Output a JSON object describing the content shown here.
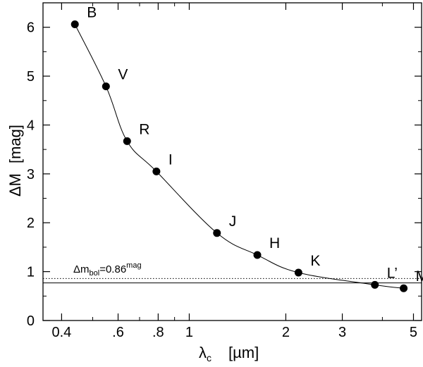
{
  "chart_data": {
    "type": "line",
    "x_scale": "log",
    "xlabel": {
      "symbol": "λ",
      "sub": "c",
      "unit": "[µm]"
    },
    "ylabel": {
      "text": "ΔM",
      "unit": "[mag]"
    },
    "xlim": [
      0.35,
      5.3
    ],
    "ylim": [
      0,
      6.5
    ],
    "xticks": [
      {
        "value": 0.4,
        "label": "0.4"
      },
      {
        "value": 0.6,
        "label": ".6"
      },
      {
        "value": 0.8,
        "label": ".8"
      },
      {
        "value": 1,
        "label": "1"
      },
      {
        "value": 2,
        "label": "2"
      },
      {
        "value": 3,
        "label": "3"
      },
      {
        "value": 5,
        "label": "5"
      }
    ],
    "xminor": [
      0.5,
      0.7,
      0.9,
      4
    ],
    "yticks": [
      {
        "value": 0,
        "label": "0"
      },
      {
        "value": 1,
        "label": "1"
      },
      {
        "value": 2,
        "label": "2"
      },
      {
        "value": 3,
        "label": "3"
      },
      {
        "value": 4,
        "label": "4"
      },
      {
        "value": 5,
        "label": "5"
      },
      {
        "value": 6,
        "label": "6"
      }
    ],
    "series": [
      {
        "name": "ΔM",
        "points": [
          {
            "band": "B",
            "x": 0.44,
            "y": 6.06
          },
          {
            "band": "V",
            "x": 0.55,
            "y": 4.79
          },
          {
            "band": "R",
            "x": 0.64,
            "y": 3.67
          },
          {
            "band": "I",
            "x": 0.79,
            "y": 3.05
          },
          {
            "band": "J",
            "x": 1.22,
            "y": 1.79
          },
          {
            "band": "H",
            "x": 1.63,
            "y": 1.34
          },
          {
            "band": "K",
            "x": 2.19,
            "y": 0.98
          },
          {
            "band": "L’",
            "x": 3.79,
            "y": 0.73
          },
          {
            "band": "M",
            "x": 4.66,
            "y": 0.66
          }
        ]
      }
    ],
    "reference_line": {
      "y": 0.86,
      "label_prefix": "Δm",
      "label_sub": "bol",
      "label_value": "=0.86",
      "label_sup": "mag"
    },
    "asymptote_line": {
      "y": 0.77
    }
  }
}
